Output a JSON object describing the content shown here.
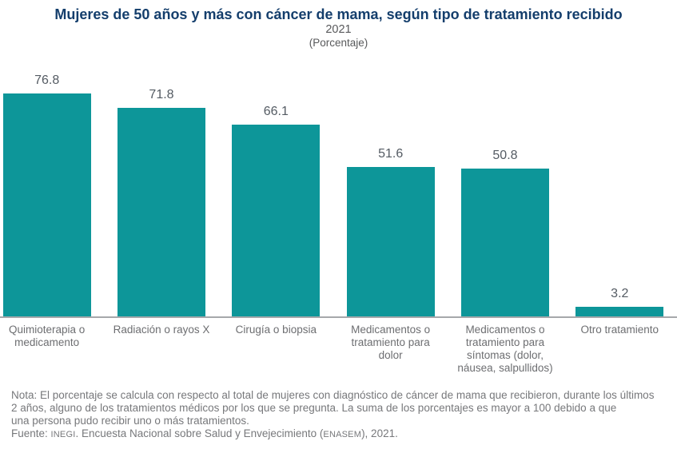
{
  "header": {
    "title": "Mujeres de 50 años y más con cáncer de mama, según tipo de tratamiento recibido",
    "year": "2021",
    "unit_label": "(Porcentaje)"
  },
  "chart_data": {
    "type": "bar",
    "title": "Mujeres de 50 años y más con cáncer de mama, según tipo de tratamiento recibido",
    "subtitle": "2021",
    "unit": "Porcentaje",
    "categories": [
      "Quimioterapia o medicamento",
      "Radiación o rayos X",
      "Cirugía o biopsia",
      "Medicamentos o tratamiento para dolor",
      "Medicamentos o tratamiento para síntomas (dolor, náusea, salpullidos)",
      "Otro tratamiento"
    ],
    "values": [
      76.8,
      71.8,
      66.1,
      51.6,
      50.8,
      3.2
    ],
    "ylim": [
      0,
      85
    ],
    "grid": false,
    "legend": "none",
    "data_labels": true,
    "bar_color": "#0d9699"
  },
  "footer": {
    "note_lines": [
      "Nota: El porcentaje se calcula con respecto al total de mujeres con diagnóstico de cáncer de mama que recibieron, durante los últimos",
      "2 años, alguno de los tratamientos médicos por los que se pregunta. La suma de los porcentajes es mayor a 100 debido a que",
      "una persona pudo recibir uno o más tratamientos."
    ],
    "source_prefix": "Fuente: ",
    "source_org": "INEGI",
    "source_mid": ". Encuesta Nacional sobre Salud y Envejecimiento (",
    "source_acronym": "ENASEM",
    "source_suffix": "), 2021."
  },
  "colors": {
    "title": "#143e6c",
    "subtitle": "#58595b",
    "bar": "#0d9699",
    "value_label": "#545b63",
    "category_label": "#6d6e71",
    "note": "#77787b",
    "axis_line": "#a6a8ab"
  }
}
